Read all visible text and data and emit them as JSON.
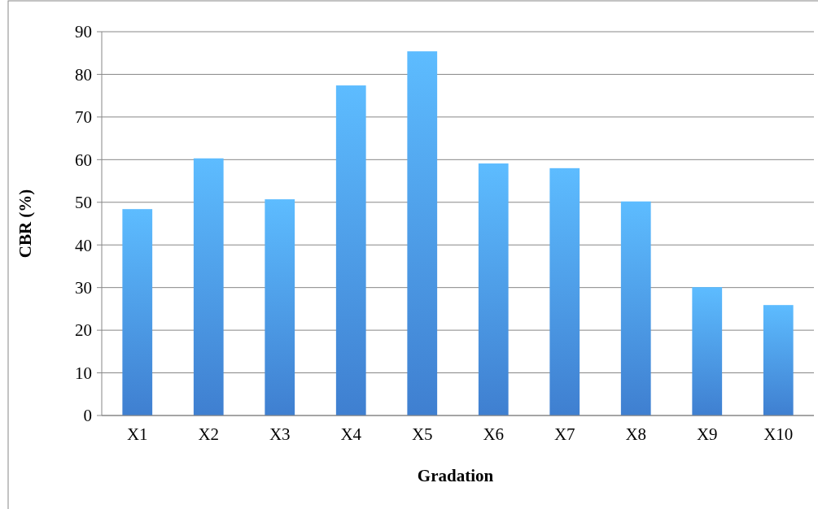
{
  "chart_data": {
    "type": "bar",
    "xlabel": "Gradation",
    "ylabel": "CBR (%)",
    "categories": [
      "X1",
      "X2",
      "X3",
      "X4",
      "X5",
      "X6",
      "X7",
      "X8",
      "X9",
      "X10"
    ],
    "values": [
      48.4,
      60.3,
      50.7,
      77.4,
      85.4,
      59.1,
      58.0,
      50.2,
      30.1,
      25.9
    ],
    "color": "#3f7fd0",
    "ylim": [
      0,
      90
    ],
    "yticks": [
      0,
      10,
      20,
      30,
      40,
      50,
      60,
      70,
      80,
      90
    ],
    "grid": "y"
  }
}
